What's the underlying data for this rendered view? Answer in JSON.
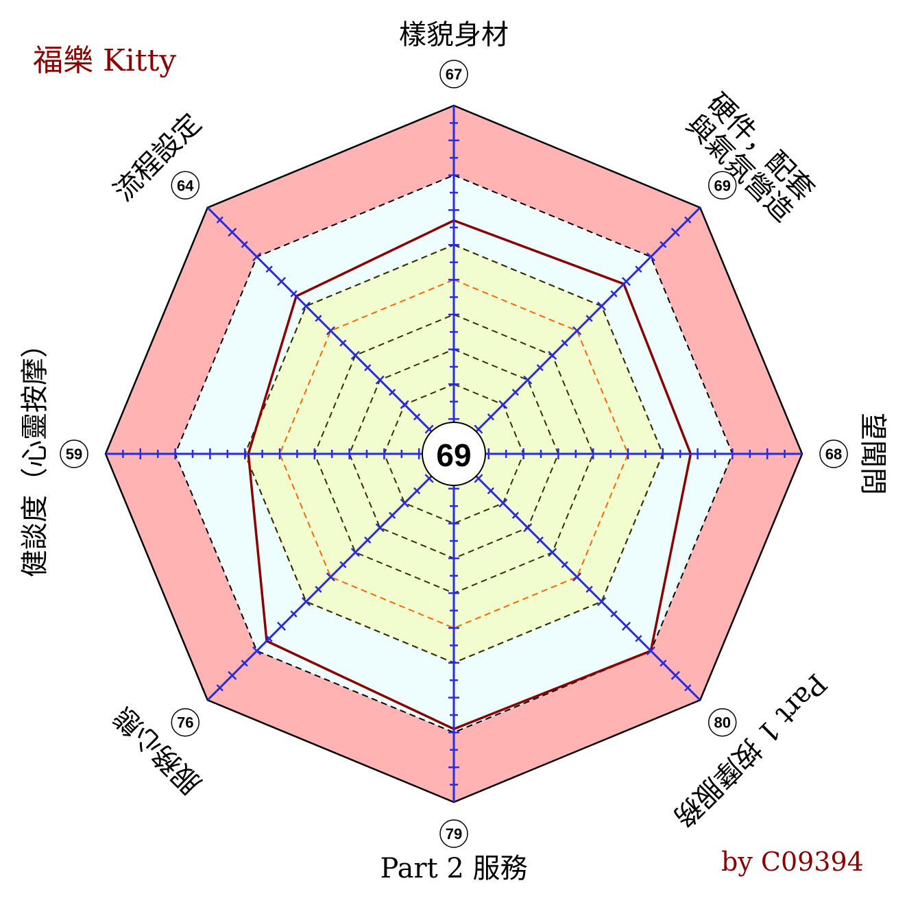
{
  "title": "福樂 Kitty",
  "credit": "by C09394",
  "chart_data": {
    "type": "radar",
    "overall_score": 69,
    "axes": [
      {
        "label": [
          "樣貌身材"
        ],
        "value": 67
      },
      {
        "label": [
          "硬件，配套",
          "與氣氛營造"
        ],
        "value": 69
      },
      {
        "label": [
          "望聞問"
        ],
        "value": 68
      },
      {
        "label": [
          "Part 1 按摩服務"
        ],
        "value": 80
      },
      {
        "label": [
          "Part 2 服務"
        ],
        "value": 79
      },
      {
        "label": [
          "服務心態"
        ],
        "value": 76
      },
      {
        "label": [
          "健談度（心靈按摩）"
        ],
        "value": 59
      },
      {
        "label": [
          "流程設定"
        ],
        "value": 64
      }
    ],
    "range": [
      0,
      100
    ],
    "bands": [
      {
        "from": 80,
        "to": 100,
        "color": "#ffb3b3"
      },
      {
        "from": 60,
        "to": 80,
        "color": "#eefdfd"
      },
      {
        "from": 0,
        "to": 60,
        "color": "#f1fdcf"
      }
    ],
    "gridlines": [
      20,
      30,
      40,
      50,
      60
    ],
    "highlight_gridline": 50,
    "series_color": "#8b0000",
    "axis_color": "#2a2ae0"
  }
}
